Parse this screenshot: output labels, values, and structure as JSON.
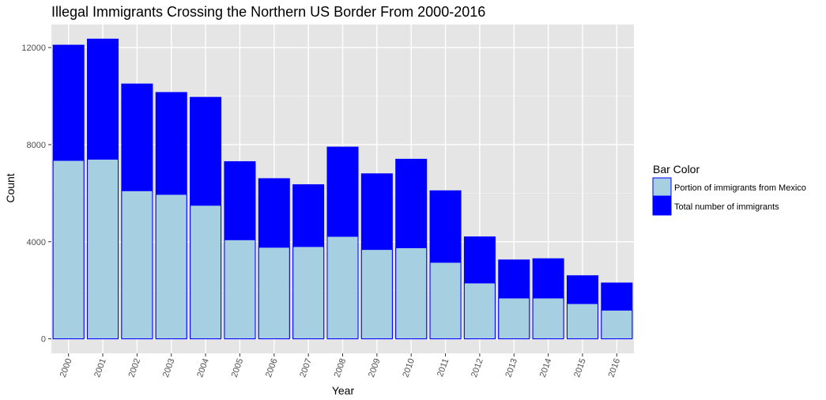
{
  "chart_data": {
    "type": "bar",
    "title": "Illegal Immigrants Crossing the Northern US Border From 2000-2016",
    "xlabel": "Year",
    "ylabel": "Count",
    "categories": [
      "2000",
      "2001",
      "2002",
      "2003",
      "2004",
      "2005",
      "2006",
      "2007",
      "2008",
      "2009",
      "2010",
      "2011",
      "2012",
      "2013",
      "2014",
      "2015",
      "2016"
    ],
    "series": [
      {
        "name": "Total number of immigrants",
        "color": "#0000ff",
        "values": [
          12100,
          12350,
          10500,
          10150,
          9950,
          7300,
          6600,
          6350,
          7900,
          6800,
          7400,
          6100,
          4200,
          3250,
          3300,
          2600,
          2300
        ]
      },
      {
        "name": "Portion of immigrants from Mexico",
        "color": "#a6cfe2",
        "values": [
          7350,
          7400,
          6100,
          5950,
          5500,
          4080,
          3770,
          3800,
          4220,
          3680,
          3750,
          3150,
          2300,
          1680,
          1680,
          1450,
          1180
        ]
      }
    ],
    "ylim": [
      -600,
      12950
    ],
    "yticks": [
      0,
      4000,
      8000,
      12000
    ],
    "grid": true,
    "legend": {
      "title": "Bar Color",
      "position": "right",
      "entries": [
        "Portion of immigrants from Mexico",
        "Total number of immigrants"
      ]
    },
    "panel_background": "#e5e5e5",
    "bar_outline": "#0000ff"
  }
}
